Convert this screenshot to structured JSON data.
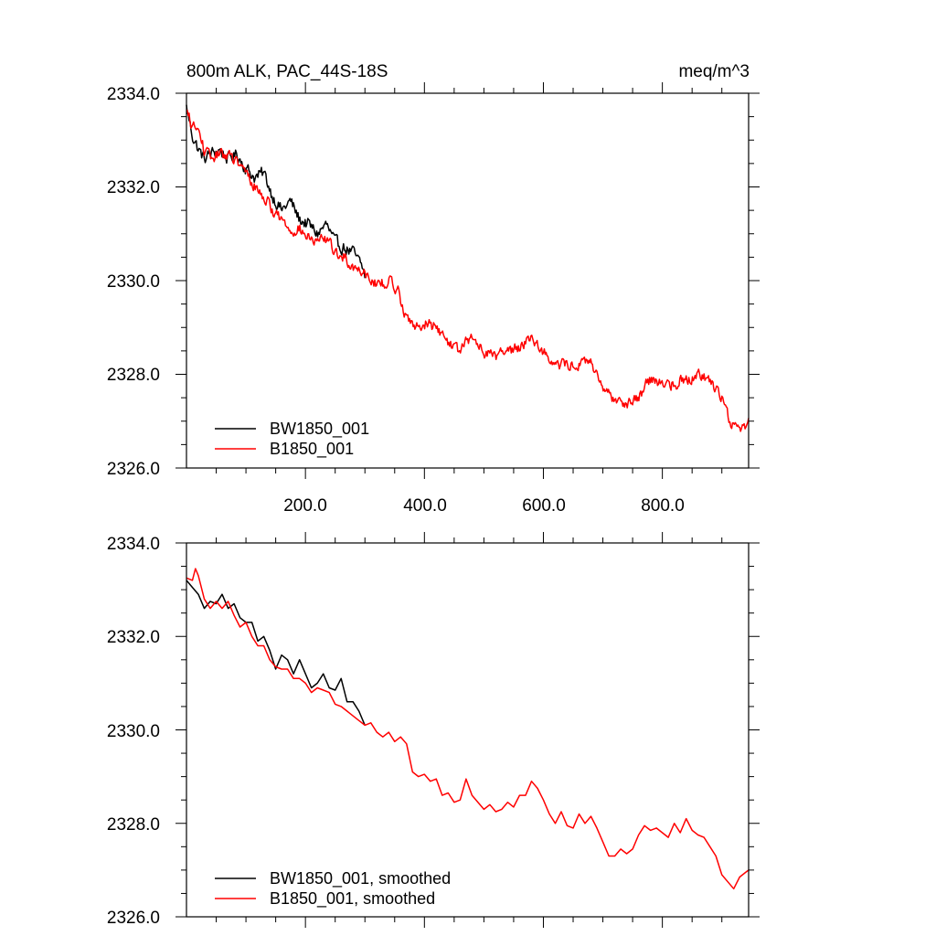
{
  "figure": {
    "title_left": "800m ALK, PAC_44S-18S",
    "title_right": "meq/m^3"
  },
  "colors": {
    "bw": "#000000",
    "b": "#ff0000",
    "axis": "#000000"
  },
  "chart_data": [
    {
      "type": "line",
      "panel": "top",
      "title": "800m ALK, PAC_44S-18S",
      "units": "meq/m^3",
      "xlabel": "",
      "ylabel": "",
      "xlim": [
        0,
        945
      ],
      "ylim": [
        2326.0,
        2334.0
      ],
      "x_ticks": [
        200,
        400,
        600,
        800
      ],
      "x_tick_labels": [
        "200.0",
        "400.0",
        "600.0",
        "800.0"
      ],
      "y_ticks": [
        2326,
        2328,
        2330,
        2332,
        2334
      ],
      "y_tick_labels": [
        "2326.0",
        "2328.0",
        "2330.0",
        "2332.0",
        "2334.0"
      ],
      "legend_position": "bottom-left",
      "series": [
        {
          "name": "BW1850_001",
          "color": "#000000",
          "noise": 0.22,
          "x": [
            0,
            10,
            20,
            30,
            40,
            55,
            70,
            85,
            100,
            115,
            130,
            145,
            160,
            175,
            190,
            205,
            220,
            235,
            250,
            265,
            280,
            295,
            300
          ],
          "y": [
            2333.7,
            2333.1,
            2332.8,
            2332.6,
            2332.7,
            2332.8,
            2332.6,
            2332.7,
            2332.4,
            2332.2,
            2332.3,
            2331.8,
            2331.5,
            2331.7,
            2331.3,
            2331.2,
            2331.0,
            2331.2,
            2330.8,
            2330.7,
            2330.6,
            2330.3,
            2330.1
          ]
        },
        {
          "name": "B1850_001",
          "color": "#ff0000",
          "noise": 0.2,
          "x": [
            0,
            10,
            20,
            30,
            40,
            55,
            70,
            85,
            100,
            115,
            130,
            145,
            160,
            175,
            190,
            205,
            220,
            235,
            250,
            265,
            280,
            300,
            320,
            340,
            355,
            365,
            380,
            400,
            420,
            440,
            460,
            480,
            500,
            520,
            540,
            560,
            580,
            600,
            620,
            640,
            660,
            680,
            700,
            720,
            740,
            760,
            780,
            800,
            820,
            840,
            860,
            880,
            900,
            915,
            930,
            945
          ],
          "y": [
            2333.6,
            2333.3,
            2333.2,
            2332.8,
            2332.6,
            2332.7,
            2332.7,
            2332.5,
            2332.3,
            2332.0,
            2331.8,
            2331.5,
            2331.3,
            2331.1,
            2331.1,
            2330.9,
            2330.8,
            2330.9,
            2330.6,
            2330.5,
            2330.3,
            2330.2,
            2329.9,
            2330.0,
            2329.8,
            2329.4,
            2329.0,
            2329.1,
            2329.0,
            2328.7,
            2328.5,
            2328.8,
            2328.5,
            2328.4,
            2328.5,
            2328.6,
            2328.8,
            2328.5,
            2328.2,
            2328.2,
            2328.2,
            2328.3,
            2327.6,
            2327.5,
            2327.4,
            2327.5,
            2327.9,
            2327.8,
            2327.8,
            2327.9,
            2328.0,
            2327.9,
            2327.5,
            2327.0,
            2326.8,
            2327.0
          ]
        }
      ]
    },
    {
      "type": "line",
      "panel": "bottom",
      "xlabel": "",
      "ylabel": "",
      "xlim": [
        0,
        945
      ],
      "ylim": [
        2326.0,
        2334.0
      ],
      "x_ticks": [
        200,
        400,
        600,
        800
      ],
      "y_ticks": [
        2326,
        2328,
        2330,
        2332,
        2334
      ],
      "y_tick_labels": [
        "2326.0",
        "2328.0",
        "2330.0",
        "2332.0",
        "2334.0"
      ],
      "legend_position": "bottom-left",
      "series": [
        {
          "name": "BW1850_001, smoothed",
          "color": "#000000",
          "noise": 0,
          "x": [
            0,
            10,
            20,
            30,
            40,
            50,
            60,
            70,
            80,
            90,
            100,
            110,
            120,
            130,
            140,
            150,
            160,
            170,
            180,
            190,
            200,
            210,
            220,
            230,
            240,
            250,
            260,
            270,
            280,
            290,
            300
          ],
          "y": [
            2333.2,
            2333.05,
            2332.9,
            2332.6,
            2332.75,
            2332.7,
            2332.9,
            2332.6,
            2332.7,
            2332.4,
            2332.3,
            2332.3,
            2331.9,
            2332.0,
            2331.7,
            2331.3,
            2331.6,
            2331.5,
            2331.2,
            2331.5,
            2331.2,
            2330.9,
            2331.0,
            2331.2,
            2330.9,
            2330.85,
            2331.1,
            2330.6,
            2330.6,
            2330.4,
            2330.1
          ]
        },
        {
          "name": "B1850_001, smoothed",
          "color": "#ff0000",
          "noise": 0,
          "x": [
            0,
            10,
            15,
            20,
            30,
            40,
            50,
            60,
            70,
            80,
            90,
            100,
            110,
            120,
            130,
            140,
            150,
            160,
            170,
            180,
            190,
            200,
            210,
            220,
            230,
            240,
            250,
            260,
            270,
            280,
            290,
            300,
            310,
            320,
            330,
            340,
            350,
            360,
            370,
            380,
            390,
            400,
            410,
            420,
            430,
            440,
            450,
            460,
            470,
            480,
            490,
            500,
            510,
            520,
            530,
            540,
            550,
            560,
            570,
            580,
            590,
            600,
            610,
            620,
            630,
            640,
            650,
            660,
            670,
            680,
            690,
            700,
            710,
            720,
            730,
            740,
            750,
            760,
            770,
            780,
            790,
            800,
            810,
            820,
            830,
            840,
            850,
            860,
            870,
            880,
            890,
            900,
            910,
            920,
            930,
            940,
            945
          ],
          "y": [
            2333.25,
            2333.2,
            2333.45,
            2333.3,
            2332.8,
            2332.6,
            2332.75,
            2332.6,
            2332.75,
            2332.45,
            2332.2,
            2332.3,
            2332.0,
            2331.8,
            2331.8,
            2331.5,
            2331.35,
            2331.3,
            2331.3,
            2331.1,
            2331.1,
            2331.0,
            2330.8,
            2330.9,
            2330.85,
            2330.8,
            2330.55,
            2330.5,
            2330.4,
            2330.3,
            2330.2,
            2330.1,
            2330.15,
            2329.95,
            2329.85,
            2329.95,
            2329.75,
            2329.85,
            2329.7,
            2329.1,
            2329.0,
            2329.05,
            2328.9,
            2328.95,
            2328.6,
            2328.65,
            2328.45,
            2328.5,
            2328.95,
            2328.6,
            2328.45,
            2328.3,
            2328.4,
            2328.25,
            2328.3,
            2328.45,
            2328.35,
            2328.6,
            2328.6,
            2328.9,
            2328.75,
            2328.5,
            2328.2,
            2328.0,
            2328.25,
            2327.95,
            2327.9,
            2328.2,
            2328.0,
            2328.15,
            2327.9,
            2327.6,
            2327.3,
            2327.3,
            2327.45,
            2327.35,
            2327.45,
            2327.75,
            2327.95,
            2327.85,
            2327.9,
            2327.8,
            2327.7,
            2328.0,
            2327.8,
            2328.1,
            2327.85,
            2327.75,
            2327.7,
            2327.5,
            2327.3,
            2326.9,
            2326.75,
            2326.6,
            2326.85,
            2326.95,
            2327.0
          ]
        }
      ]
    }
  ]
}
